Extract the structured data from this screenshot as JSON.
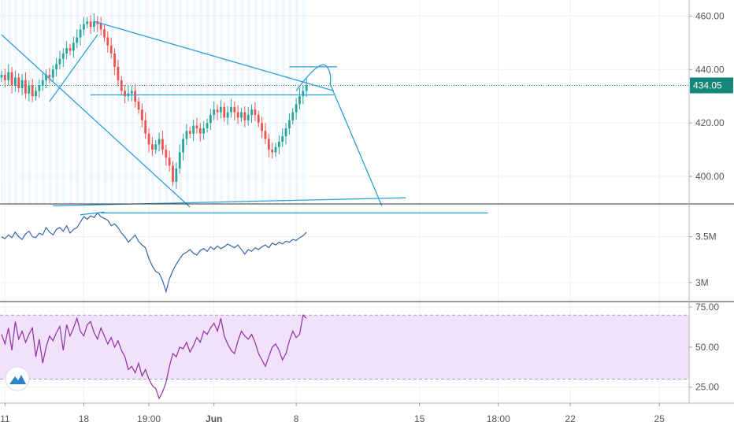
{
  "colors": {
    "up": "#26a69a",
    "down": "#ef5350",
    "trendline": "#2d9fd9",
    "pane_sep": "#333333",
    "obv_line": "#3566a8",
    "rsi_line": "#8f2fa0",
    "rsi_band": "#f1e1fa",
    "price_badge": "#14877a",
    "grid": "#eef0f3",
    "session_shade": "#e3f1fd"
  },
  "logo": {
    "icon": "tradingview-logo-icon"
  },
  "chart_data": [
    {
      "type": "candlestick",
      "pane": "price",
      "yticks": [
        400,
        420,
        440,
        460
      ],
      "ytick_labels": [
        "400.00",
        "420.00",
        "440.00",
        "460.00"
      ],
      "ylim": [
        390,
        466
      ],
      "last_price": 434.05,
      "last_price_label": "434.05",
      "series_points": [
        438,
        436,
        439,
        434,
        437,
        433,
        436,
        431,
        434,
        430,
        432,
        434,
        436,
        438,
        437,
        440,
        442,
        444,
        446,
        448,
        447,
        450,
        452,
        455,
        457,
        458,
        456,
        458,
        457,
        455,
        452,
        449,
        446,
        441,
        436,
        432,
        430,
        431,
        432,
        428,
        425,
        421,
        416,
        412,
        410,
        412,
        414,
        410,
        407,
        404,
        398,
        403,
        409,
        414,
        417,
        416,
        419,
        418,
        416,
        418,
        420,
        423,
        425,
        424,
        426,
        422,
        424,
        426,
        424,
        422,
        424,
        421,
        423,
        425,
        423,
        420,
        417,
        414,
        410,
        409,
        411,
        413,
        415,
        418,
        421,
        424,
        427,
        430,
        432,
        434
      ],
      "annotations": [
        {
          "type": "trendline",
          "from": [
            0,
            453
          ],
          "to": [
            55,
            388.5
          ]
        },
        {
          "type": "trendline",
          "from": [
            14,
            428
          ],
          "to": [
            28,
            453
          ]
        },
        {
          "type": "trendline",
          "from": [
            27,
            458
          ],
          "to": [
            97,
            432
          ]
        },
        {
          "type": "horizontal",
          "from": [
            26,
            430.5
          ],
          "to": [
            97,
            430.5
          ]
        },
        {
          "type": "horizontal",
          "from": [
            84,
            441
          ],
          "to": [
            98,
            441
          ]
        },
        {
          "type": "trendline",
          "from": [
            15,
            389
          ],
          "to": [
            118,
            392
          ]
        },
        {
          "type": "projection",
          "from": [
            86,
            432
          ],
          "via": [
            95,
            441
          ],
          "to": [
            111,
            389
          ]
        }
      ]
    },
    {
      "type": "line",
      "pane": "volume-indicator",
      "yticks": [
        3.0,
        3.5
      ],
      "ytick_labels": [
        "3M",
        "3.5M"
      ],
      "ylim": [
        2.8,
        3.85
      ],
      "values": [
        3.5,
        3.48,
        3.52,
        3.49,
        3.55,
        3.5,
        3.47,
        3.53,
        3.56,
        3.5,
        3.49,
        3.54,
        3.52,
        3.6,
        3.55,
        3.52,
        3.58,
        3.6,
        3.56,
        3.62,
        3.54,
        3.58,
        3.6,
        3.66,
        3.72,
        3.69,
        3.73,
        3.71,
        3.76,
        3.72,
        3.7,
        3.68,
        3.62,
        3.64,
        3.6,
        3.54,
        3.5,
        3.44,
        3.48,
        3.52,
        3.45,
        3.41,
        3.38,
        3.26,
        3.18,
        3.12,
        3.1,
        3.02,
        2.9,
        3.04,
        3.13,
        3.2,
        3.26,
        3.31,
        3.33,
        3.36,
        3.32,
        3.3,
        3.35,
        3.37,
        3.34,
        3.39,
        3.36,
        3.4,
        3.37,
        3.39,
        3.42,
        3.4,
        3.38,
        3.41,
        3.36,
        3.31,
        3.36,
        3.34,
        3.38,
        3.36,
        3.39,
        3.41,
        3.38,
        3.43,
        3.41,
        3.44,
        3.42,
        3.45,
        3.44,
        3.47,
        3.46,
        3.49,
        3.51,
        3.55
      ],
      "annotations": [
        {
          "type": "horizontal",
          "from": [
            29,
            3.76
          ],
          "to": [
            142,
            3.76
          ]
        },
        {
          "type": "trendline",
          "from": [
            23,
            3.74
          ],
          "to": [
            30,
            3.77
          ]
        }
      ]
    },
    {
      "type": "line",
      "pane": "RSI",
      "yticks": [
        25,
        50,
        75
      ],
      "ytick_labels": [
        "25.00",
        "50.00",
        "75.00"
      ],
      "ylim": [
        15,
        78
      ],
      "band": [
        30,
        70
      ],
      "values": [
        58,
        52,
        62,
        48,
        66,
        55,
        60,
        53,
        58,
        62,
        44,
        55,
        40,
        50,
        57,
        54,
        59,
        63,
        48,
        64,
        57,
        62,
        68,
        60,
        57,
        64,
        66,
        59,
        55,
        62,
        57,
        52,
        56,
        50,
        54,
        48,
        44,
        36,
        38,
        34,
        40,
        32,
        36,
        30,
        26,
        24,
        18,
        22,
        28,
        38,
        46,
        44,
        50,
        49,
        53,
        47,
        51,
        56,
        53,
        60,
        58,
        62,
        65,
        60,
        68,
        57,
        52,
        48,
        46,
        54,
        60,
        57,
        55,
        58,
        53,
        46,
        42,
        38,
        44,
        50,
        52,
        48,
        42,
        46,
        54,
        60,
        56,
        58,
        70,
        68
      ],
      "annotations": []
    }
  ],
  "x_axis": {
    "labels": [
      {
        "text": "11",
        "index": 1
      },
      {
        "text": "18",
        "index": 24
      },
      {
        "text": "19:00",
        "index": 43
      },
      {
        "text": "Jun",
        "index": 62
      },
      {
        "text": "8",
        "index": 86
      },
      {
        "text": "15",
        "index": 122
      },
      {
        "text": "18:00",
        "index": 145
      },
      {
        "text": "22",
        "index": 166
      },
      {
        "text": "25",
        "index": 192
      }
    ]
  }
}
